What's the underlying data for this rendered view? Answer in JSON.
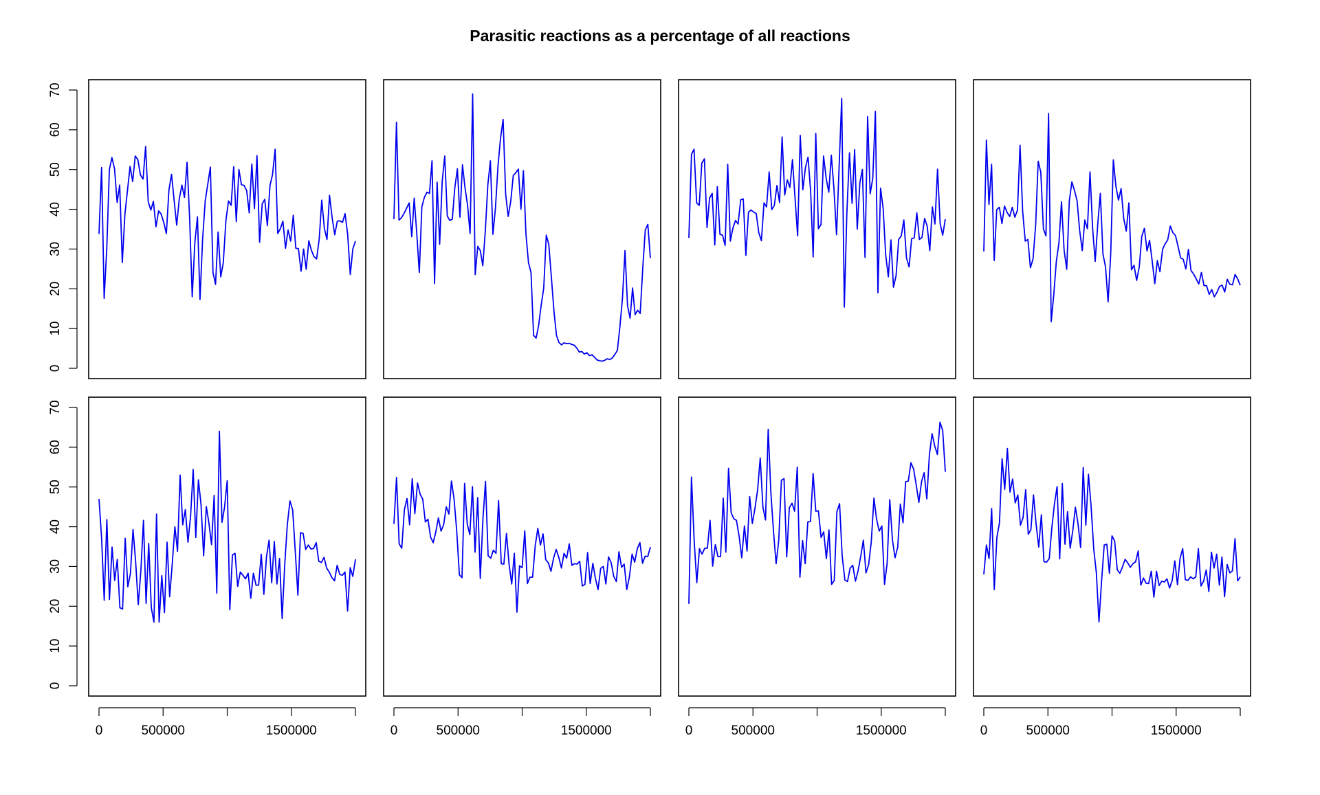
{
  "title": "Parasitic reactions as a percentage of all reactions",
  "colors": {
    "line": "#0000ee",
    "frame": "#000000"
  },
  "chart_data": [
    {
      "type": "line",
      "xlim": [
        0,
        2000000
      ],
      "ylim": [
        0,
        70
      ],
      "grid": false,
      "xticks": [
        0,
        500000,
        1000000,
        1500000,
        2000000
      ],
      "xtick_labels": [
        "0",
        "500000",
        "",
        "1500000",
        ""
      ],
      "yticks": [
        0,
        10,
        20,
        30,
        40,
        50,
        60,
        70
      ],
      "series": [
        {
          "values": [
            33.8,
            50.5,
            17.6,
            30.1,
            50.0,
            53.0,
            50.2,
            41.7,
            46.1,
            26.6,
            38.8,
            44.7,
            50.8,
            47.0,
            53.4,
            52.5,
            48.6,
            47.6,
            55.8,
            41.9,
            39.8,
            42.0,
            35.6,
            39.6,
            38.8,
            36.7,
            33.9,
            44.8,
            48.8,
            42.2,
            36.0,
            42.6,
            46.1,
            43.0,
            51.8,
            37.5,
            18.0,
            31.6,
            38.1,
            17.3,
            32.4,
            42.1,
            46.3,
            50.6,
            24.1,
            21.1,
            34.3,
            23.0,
            26.6,
            37.2,
            42.1,
            41.0,
            50.7,
            36.9,
            50.0,
            46.2,
            46.0,
            44.7,
            39.1,
            51.4,
            40.2,
            53.5,
            31.7,
            41.4,
            42.5,
            35.9,
            46.0,
            48.7,
            55.1,
            33.9,
            35.1,
            37.0,
            30.2,
            34.8,
            32.0,
            38.5,
            30.2,
            30.1,
            24.4,
            30.0,
            24.9,
            32.1,
            29.7,
            28.1,
            27.5,
            32.5,
            42.3,
            35.2,
            32.4,
            43.5,
            37.9,
            33.6,
            37.0,
            37.1,
            36.7,
            38.9,
            33.7,
            23.6,
            30.0,
            32.0
          ]
        }
      ]
    },
    {
      "type": "line",
      "xlim": [
        0,
        2000000
      ],
      "ylim": [
        0,
        70
      ],
      "grid": false,
      "xticks": [
        0,
        500000,
        1000000,
        1500000,
        2000000
      ],
      "xtick_labels": [
        "0",
        "500000",
        "",
        "1500000",
        ""
      ],
      "yticks": [],
      "series": [
        {
          "values": [
            37.5,
            61.9,
            37.3,
            37.9,
            39.0,
            40.3,
            41.6,
            33.1,
            42.8,
            33.9,
            24.1,
            40.6,
            43.0,
            44.3,
            44.0,
            52.2,
            21.3,
            46.8,
            31.2,
            47.0,
            53.4,
            38.3,
            37.2,
            37.5,
            45.5,
            50.2,
            38.0,
            51.2,
            45.4,
            41.0,
            33.9,
            69.0,
            23.6,
            30.7,
            29.6,
            25.8,
            34.8,
            46.2,
            52.2,
            33.7,
            40.4,
            51.0,
            57.9,
            62.6,
            43.8,
            38.2,
            42.0,
            48.5,
            49.2,
            50.1,
            40.0,
            49.7,
            33.8,
            26.6,
            24.1,
            8.3,
            7.6,
            10.8,
            15.9,
            20.2,
            33.5,
            31.1,
            22.9,
            14.5,
            8.3,
            6.5,
            5.9,
            6.4,
            6.2,
            6.3,
            6.0,
            5.8,
            5.1,
            4.1,
            4.2,
            3.6,
            3.9,
            3.2,
            3.4,
            2.8,
            2.1,
            1.9,
            1.8,
            2.0,
            2.4,
            2.2,
            2.6,
            3.5,
            4.5,
            10.5,
            17.6,
            29.6,
            15.7,
            12.6,
            20.2,
            13.5,
            14.6,
            13.8,
            25.1,
            34.8,
            36.2,
            27.7
          ]
        }
      ]
    },
    {
      "type": "line",
      "xlim": [
        0,
        2000000
      ],
      "ylim": [
        0,
        70
      ],
      "grid": false,
      "xticks": [
        0,
        500000,
        1000000,
        1500000,
        2000000
      ],
      "xtick_labels": [
        "0",
        "500000",
        "",
        "1500000",
        ""
      ],
      "yticks": [],
      "series": [
        {
          "values": [
            32.8,
            53.8,
            55.1,
            41.6,
            41.0,
            51.6,
            52.7,
            35.4,
            42.8,
            44.0,
            31.0,
            45.7,
            33.7,
            33.5,
            30.9,
            51.3,
            32.0,
            35.3,
            37.2,
            36.3,
            42.4,
            42.6,
            28.4,
            39.3,
            39.8,
            39.3,
            38.9,
            34.1,
            32.1,
            41.6,
            40.6,
            49.4,
            39.9,
            41.0,
            46.0,
            41.7,
            58.2,
            43.6,
            47.4,
            45.5,
            52.5,
            42.6,
            33.3,
            58.6,
            44.9,
            50.4,
            53.1,
            44.6,
            28.0,
            59.1,
            35.1,
            36.2,
            53.4,
            47.8,
            44.3,
            53.6,
            45.2,
            33.6,
            50.5,
            67.9,
            15.4,
            39.1,
            54.2,
            41.5,
            55.0,
            35.0,
            46.7,
            50.0,
            27.9,
            63.3,
            43.9,
            47.8,
            64.6,
            19.0,
            45.3,
            40.2,
            28.5,
            23.0,
            32.3,
            20.4,
            23.3,
            32.4,
            33.3,
            37.3,
            27.8,
            25.5,
            32.6,
            32.8,
            39.1,
            32.4,
            32.9,
            37.7,
            35.8,
            29.6,
            40.6,
            36.3,
            50.1,
            36.4,
            33.5,
            37.5
          ]
        }
      ]
    },
    {
      "type": "line",
      "xlim": [
        0,
        2000000
      ],
      "ylim": [
        0,
        70
      ],
      "grid": false,
      "xticks": [
        0,
        500000,
        1000000,
        1500000,
        2000000
      ],
      "xtick_labels": [
        "0",
        "500000",
        "",
        "1500000",
        ""
      ],
      "yticks": [],
      "series": [
        {
          "values": [
            29.4,
            57.4,
            41.2,
            51.3,
            27.1,
            39.9,
            40.5,
            36.4,
            40.8,
            39.2,
            38.2,
            40.5,
            38.0,
            39.8,
            56.1,
            39.5,
            32.0,
            32.4,
            25.3,
            27.5,
            36.0,
            52.1,
            49.3,
            35.1,
            33.3,
            64.1,
            11.7,
            18.4,
            26.9,
            31.6,
            41.9,
            29.7,
            24.9,
            42.0,
            46.9,
            44.7,
            42.2,
            34.7,
            29.6,
            37.3,
            35.1,
            49.4,
            35.4,
            26.9,
            36.4,
            44.0,
            28.8,
            25.4,
            16.7,
            28.8,
            52.4,
            45.7,
            42.3,
            45.2,
            37.7,
            34.5,
            41.6,
            24.8,
            25.9,
            22.1,
            25.5,
            33.2,
            35.2,
            29.5,
            32.2,
            27.0,
            21.3,
            27.1,
            24.3,
            29.9,
            31.3,
            32.3,
            35.8,
            34.1,
            33.4,
            30.6,
            27.8,
            27.4,
            25.0,
            29.9,
            24.6,
            23.7,
            22.5,
            21.2,
            24.1,
            20.8,
            20.8,
            18.6,
            19.8,
            18.0,
            19.1,
            20.6,
            20.9,
            19.2,
            22.4,
            21.1,
            21.0,
            23.6,
            22.5,
            20.9
          ]
        }
      ]
    },
    {
      "type": "line",
      "xlim": [
        0,
        2000000
      ],
      "ylim": [
        0,
        70
      ],
      "grid": false,
      "xticks": [
        0,
        500000,
        1000000,
        1500000,
        2000000
      ],
      "xtick_labels": [
        "0",
        "500000",
        "",
        "1500000",
        ""
      ],
      "yticks": [
        0,
        10,
        20,
        30,
        40,
        50,
        60,
        70
      ],
      "series": [
        {
          "values": [
            47.0,
            37.1,
            21.5,
            41.8,
            21.7,
            34.9,
            26.5,
            31.8,
            19.6,
            19.3,
            37.1,
            24.9,
            28.2,
            39.3,
            31.2,
            20.4,
            29.0,
            41.6,
            20.7,
            35.8,
            19.6,
            16.0,
            43.2,
            16.0,
            27.7,
            18.4,
            36.1,
            22.4,
            30.8,
            40.0,
            33.8,
            53.0,
            40.5,
            44.3,
            36.1,
            42.6,
            54.4,
            37.3,
            51.8,
            45.6,
            32.7,
            45.1,
            40.9,
            35.5,
            47.9,
            23.3,
            64.0,
            41.1,
            45.0,
            51.6,
            19.1,
            32.9,
            33.3,
            25.0,
            28.6,
            27.8,
            26.9,
            28.3,
            22.0,
            28.3,
            25.3,
            25.3,
            33.1,
            23.0,
            32.4,
            36.6,
            25.9,
            36.3,
            25.6,
            32.0,
            16.9,
            30.6,
            40.7,
            46.5,
            44.2,
            33.8,
            22.8,
            38.5,
            38.3,
            34.3,
            35.4,
            34.4,
            34.5,
            36.0,
            31.3,
            31.0,
            32.3,
            29.6,
            28.6,
            27.2,
            26.4,
            30.3,
            28.0,
            27.8,
            28.6,
            18.8,
            29.7,
            27.5,
            31.8
          ]
        }
      ]
    },
    {
      "type": "line",
      "xlim": [
        0,
        2000000
      ],
      "ylim": [
        0,
        70
      ],
      "grid": false,
      "xticks": [
        0,
        500000,
        1000000,
        1500000,
        2000000
      ],
      "xtick_labels": [
        "0",
        "500000",
        "",
        "1500000",
        ""
      ],
      "yticks": [],
      "series": [
        {
          "values": [
            40.7,
            52.4,
            35.7,
            34.6,
            44.3,
            47.1,
            40.5,
            52.1,
            43.3,
            51.0,
            48.2,
            46.9,
            41.2,
            41.9,
            37.4,
            36.0,
            38.7,
            42.2,
            38.9,
            40.5,
            45.0,
            43.2,
            51.5,
            46.9,
            39.0,
            27.9,
            27.2,
            50.9,
            40.7,
            38.0,
            50.1,
            33.6,
            47.3,
            27.0,
            41.8,
            51.4,
            32.7,
            32.1,
            34.1,
            33.3,
            46.6,
            30.7,
            30.6,
            38.3,
            30.5,
            25.6,
            33.3,
            18.5,
            30.2,
            29.7,
            39.0,
            25.7,
            27.3,
            27.3,
            35.2,
            39.6,
            35.4,
            38.2,
            31.7,
            30.9,
            28.8,
            32.1,
            34.3,
            32.3,
            29.6,
            33.3,
            32.1,
            35.7,
            30.3,
            30.7,
            30.6,
            31.3,
            25.1,
            25.5,
            33.5,
            25.7,
            30.8,
            27.0,
            24.2,
            29.5,
            30.0,
            25.6,
            32.4,
            31.0,
            27.5,
            26.2,
            33.7,
            29.8,
            30.6,
            24.2,
            27.5,
            33.1,
            31.1,
            34.5,
            36.0,
            30.8,
            32.6,
            32.5,
            34.9
          ]
        }
      ]
    },
    {
      "type": "line",
      "xlim": [
        0,
        2000000
      ],
      "ylim": [
        0,
        70
      ],
      "grid": false,
      "xticks": [
        0,
        500000,
        1000000,
        1500000,
        2000000
      ],
      "xtick_labels": [
        "0",
        "500000",
        "",
        "1500000",
        ""
      ],
      "yticks": [],
      "series": [
        {
          "values": [
            20.6,
            52.5,
            36.5,
            25.9,
            34.5,
            33.1,
            34.6,
            34.6,
            41.6,
            30.1,
            35.5,
            32.5,
            32.5,
            47.2,
            33.6,
            54.7,
            43.5,
            42.0,
            41.6,
            37.6,
            32.2,
            40.2,
            33.9,
            47.6,
            40.8,
            44.6,
            49.3,
            57.3,
            44.9,
            41.7,
            64.5,
            48.8,
            38.8,
            30.7,
            36.5,
            51.7,
            52.1,
            32.4,
            44.8,
            45.9,
            43.9,
            55.0,
            27.3,
            36.5,
            30.7,
            41.2,
            41.3,
            53.4,
            43.9,
            44.0,
            37.3,
            38.7,
            32.0,
            39.2,
            25.5,
            26.5,
            43.8,
            45.8,
            32.6,
            26.6,
            26.2,
            29.6,
            30.3,
            26.3,
            28.9,
            32.5,
            36.6,
            28.4,
            30.5,
            36.2,
            47.2,
            41.9,
            38.9,
            40.2,
            25.5,
            30.8,
            46.8,
            36.7,
            32.2,
            34.9,
            45.7,
            41.0,
            51.3,
            51.5,
            56.1,
            54.5,
            50.5,
            46.1,
            51.3,
            53.6,
            47.0,
            58.2,
            63.4,
            60.3,
            58.2,
            66.3,
            64.2,
            53.8
          ]
        }
      ]
    },
    {
      "type": "line",
      "xlim": [
        0,
        2000000
      ],
      "ylim": [
        0,
        70
      ],
      "grid": false,
      "xticks": [
        0,
        500000,
        1000000,
        1500000,
        2000000
      ],
      "xtick_labels": [
        "0",
        "500000",
        "",
        "1500000",
        ""
      ],
      "yticks": [],
      "series": [
        {
          "values": [
            28.0,
            35.4,
            32.0,
            44.6,
            24.2,
            37.3,
            41.0,
            57.1,
            49.4,
            59.7,
            48.7,
            52.0,
            46.0,
            48.0,
            40.4,
            42.3,
            49.3,
            38.1,
            39.3,
            48.0,
            40.6,
            34.9,
            43.0,
            31.2,
            31.1,
            32.0,
            39.8,
            45.8,
            50.1,
            31.9,
            50.9,
            35.6,
            43.8,
            34.6,
            39.0,
            44.9,
            40.8,
            34.8,
            54.9,
            40.4,
            53.2,
            45.0,
            34.4,
            28.4,
            16.1,
            26.3,
            35.4,
            35.6,
            28.3,
            37.7,
            36.4,
            29.2,
            28.3,
            29.9,
            31.8,
            30.9,
            29.8,
            30.7,
            31.2,
            33.9,
            25.3,
            27.1,
            25.8,
            25.7,
            28.8,
            22.3,
            28.8,
            25.2,
            26.3,
            26.1,
            26.9,
            24.6,
            26.5,
            31.4,
            25.4,
            32.1,
            34.5,
            26.7,
            26.5,
            27.4,
            26.9,
            27.4,
            34.5,
            25.1,
            26.3,
            29.1,
            23.7,
            33.6,
            29.6,
            33.1,
            25.3,
            32.4,
            22.4,
            30.5,
            28.4,
            28.9,
            37.0,
            26.4,
            27.4
          ]
        }
      ]
    }
  ]
}
